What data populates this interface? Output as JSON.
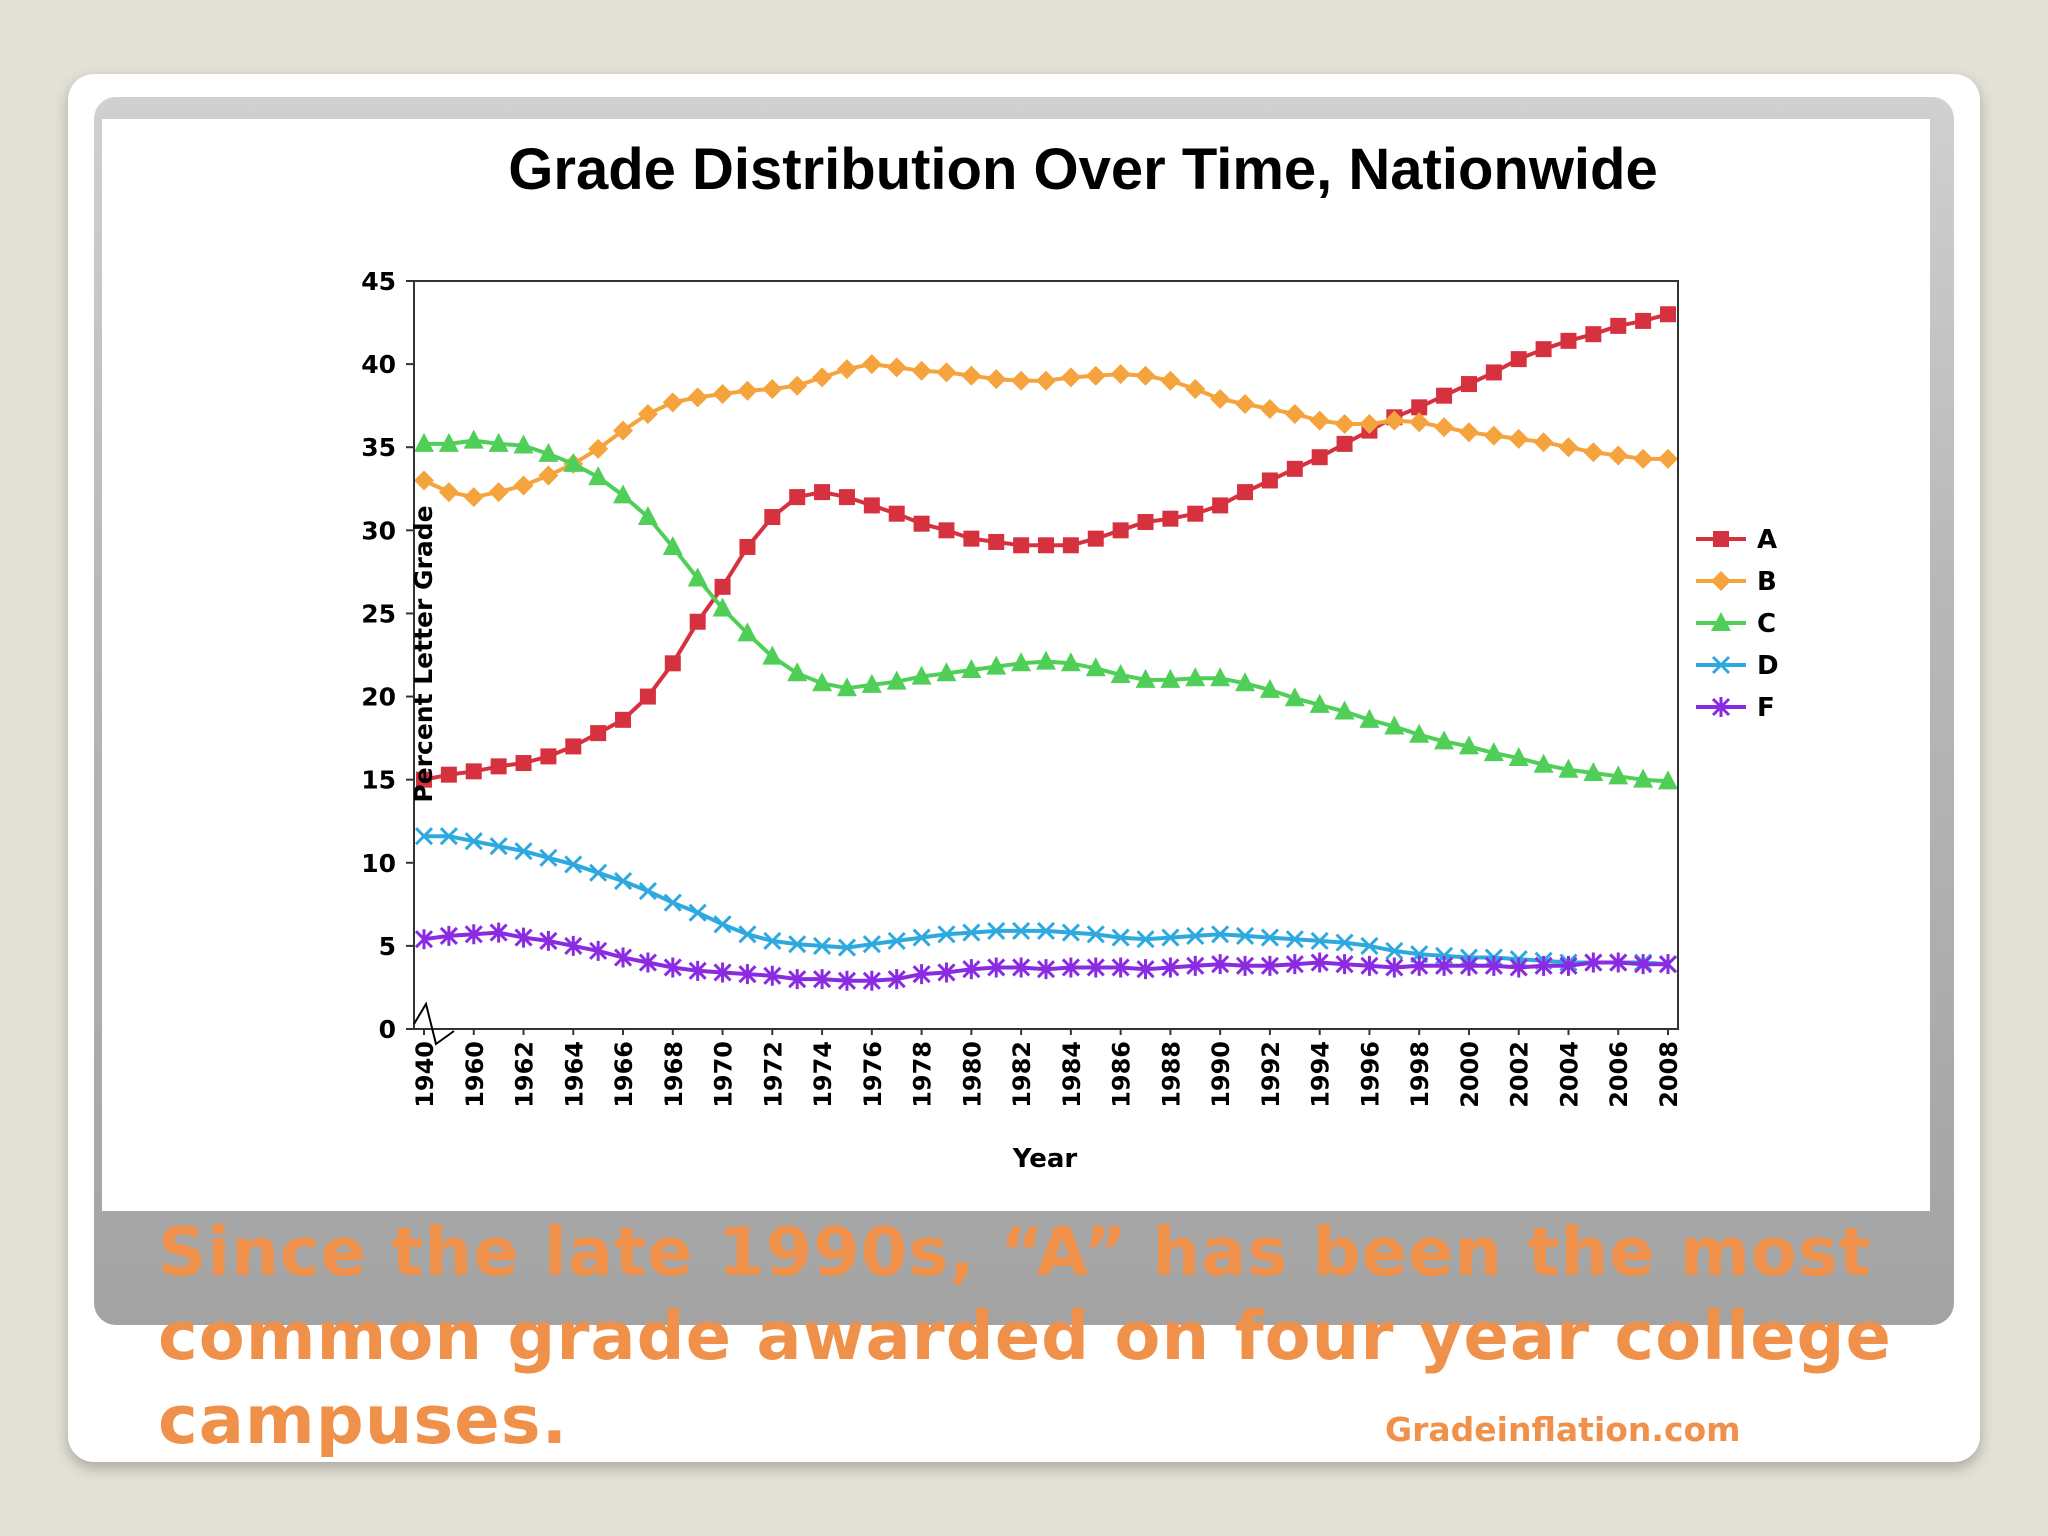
{
  "caption": "Since the late 1990s, “A” has been the most common grade awarded on four year college campuses.",
  "source": "Gradeinflation.com",
  "chart_data": {
    "type": "line",
    "title": "Grade Distribution Over Time, Nationwide",
    "xlabel": "Year",
    "ylabel": "Percent Letter Grade",
    "ylim": [
      0,
      45
    ],
    "yticks": [
      "0",
      "5",
      "10",
      "15",
      "20",
      "25",
      "30",
      "35",
      "40",
      "45"
    ],
    "categories": [
      "1940",
      "1950",
      "1960",
      "1961",
      "1962",
      "1963",
      "1964",
      "1965",
      "1966",
      "1967",
      "1968",
      "1969",
      "1970",
      "1971",
      "1972",
      "1973",
      "1974",
      "1975",
      "1976",
      "1977",
      "1978",
      "1979",
      "1980",
      "1981",
      "1982",
      "1983",
      "1984",
      "1985",
      "1986",
      "1987",
      "1988",
      "1989",
      "1990",
      "1991",
      "1992",
      "1993",
      "1994",
      "1995",
      "1996",
      "1997",
      "1998",
      "1999",
      "2000",
      "2001",
      "2002",
      "2003",
      "2004",
      "2005",
      "2006",
      "2007",
      "2008"
    ],
    "tick_labels": [
      "1940",
      "1960",
      "1962",
      "1964",
      "1966",
      "1968",
      "1970",
      "1972",
      "1974",
      "1976",
      "1978",
      "1980",
      "1982",
      "1984",
      "1986",
      "1988",
      "1990",
      "1992",
      "1994",
      "1996",
      "1998",
      "2000",
      "2002",
      "2004",
      "2006",
      "2008"
    ],
    "legend_position": "right",
    "series": [
      {
        "name": "A",
        "color": "#d6313f",
        "marker": "square",
        "values": [
          15.0,
          15.3,
          15.5,
          15.8,
          16.0,
          16.4,
          17.0,
          17.8,
          18.6,
          20.0,
          22.0,
          24.5,
          26.6,
          29.0,
          30.8,
          32.0,
          32.3,
          32.0,
          31.5,
          31.0,
          30.4,
          30.0,
          29.5,
          29.3,
          29.1,
          29.1,
          29.1,
          29.5,
          30.0,
          30.5,
          30.7,
          31.0,
          31.5,
          32.3,
          33.0,
          33.7,
          34.4,
          35.2,
          36.0,
          36.8,
          37.4,
          38.1,
          38.8,
          39.5,
          40.3,
          40.9,
          41.4,
          41.8,
          42.3,
          42.6,
          43.0
        ]
      },
      {
        "name": "B",
        "color": "#f5a33c",
        "marker": "diamond",
        "values": [
          33.0,
          32.3,
          32.0,
          32.3,
          32.7,
          33.3,
          34.0,
          34.9,
          36.0,
          37.0,
          37.7,
          38.0,
          38.2,
          38.4,
          38.5,
          38.7,
          39.2,
          39.7,
          40.0,
          39.8,
          39.6,
          39.5,
          39.3,
          39.1,
          39.0,
          39.0,
          39.2,
          39.3,
          39.4,
          39.3,
          39.0,
          38.5,
          37.9,
          37.6,
          37.3,
          37.0,
          36.6,
          36.4,
          36.4,
          36.6,
          36.5,
          36.2,
          35.9,
          35.7,
          35.5,
          35.3,
          35.0,
          34.7,
          34.5,
          34.3,
          34.3
        ]
      },
      {
        "name": "C",
        "color": "#4fcf57",
        "marker": "triangle",
        "values": [
          35.2,
          35.2,
          35.4,
          35.2,
          35.1,
          34.6,
          34.0,
          33.2,
          32.1,
          30.8,
          29.0,
          27.1,
          25.3,
          23.8,
          22.4,
          21.4,
          20.8,
          20.5,
          20.7,
          20.9,
          21.2,
          21.4,
          21.6,
          21.8,
          22.0,
          22.1,
          22.0,
          21.7,
          21.3,
          21.0,
          21.0,
          21.1,
          21.1,
          20.8,
          20.4,
          19.9,
          19.5,
          19.1,
          18.6,
          18.2,
          17.7,
          17.3,
          17.0,
          16.6,
          16.3,
          15.9,
          15.6,
          15.4,
          15.2,
          15.0,
          14.9
        ]
      },
      {
        "name": "D",
        "color": "#2ea9e0",
        "marker": "x",
        "values": [
          11.6,
          11.6,
          11.3,
          11.0,
          10.7,
          10.3,
          9.9,
          9.4,
          8.9,
          8.3,
          7.6,
          7.0,
          6.3,
          5.7,
          5.3,
          5.1,
          5.0,
          4.9,
          5.1,
          5.3,
          5.5,
          5.7,
          5.8,
          5.9,
          5.9,
          5.9,
          5.8,
          5.7,
          5.5,
          5.4,
          5.5,
          5.6,
          5.7,
          5.6,
          5.5,
          5.4,
          5.3,
          5.2,
          5.0,
          4.7,
          4.5,
          4.4,
          4.3,
          4.3,
          4.2,
          4.1,
          4.0,
          4.0,
          4.0,
          4.0,
          3.9
        ]
      },
      {
        "name": "F",
        "color": "#8a2be2",
        "marker": "asterisk",
        "values": [
          5.4,
          5.6,
          5.7,
          5.8,
          5.5,
          5.3,
          5.0,
          4.7,
          4.3,
          4.0,
          3.7,
          3.5,
          3.4,
          3.3,
          3.2,
          3.0,
          3.0,
          2.9,
          2.9,
          3.0,
          3.3,
          3.4,
          3.6,
          3.7,
          3.7,
          3.6,
          3.7,
          3.7,
          3.7,
          3.6,
          3.7,
          3.8,
          3.9,
          3.8,
          3.8,
          3.9,
          4.0,
          3.9,
          3.8,
          3.7,
          3.8,
          3.8,
          3.8,
          3.8,
          3.7,
          3.8,
          3.8,
          4.0,
          4.0,
          3.9,
          3.9
        ]
      }
    ]
  }
}
